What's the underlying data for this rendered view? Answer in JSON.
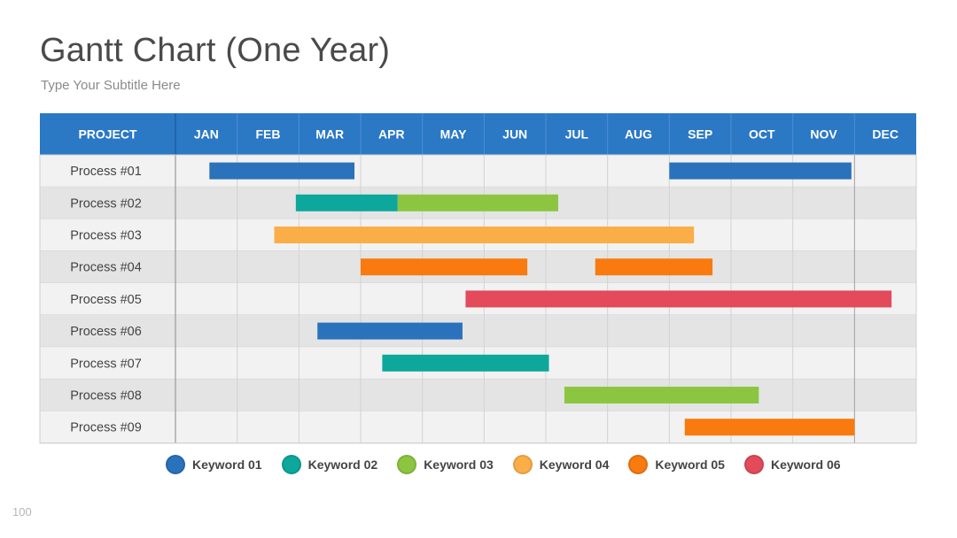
{
  "page": {
    "title": "Gantt Chart (One Year)",
    "subtitle": "Type Your Subtitle Here",
    "page_number": "100"
  },
  "colors": {
    "header": "#2b78c5",
    "keyword_01": "#2a72bc",
    "keyword_02": "#0ea79b",
    "keyword_03": "#8cc640",
    "keyword_04": "#fbae48",
    "keyword_05": "#f97a0e",
    "keyword_06": "#e34a5a"
  },
  "chart_data": {
    "type": "gantt",
    "header_label": "PROJECT",
    "months": [
      "JAN",
      "FEB",
      "MAR",
      "APR",
      "MAY",
      "JUN",
      "JUL",
      "AUG",
      "SEP",
      "OCT",
      "NOV",
      "DEC"
    ],
    "rows": [
      {
        "name": "Process #01",
        "bars": [
          {
            "start": 0.55,
            "end": 2.9,
            "keyword": "Keyword 01"
          },
          {
            "start": 8.0,
            "end": 10.95,
            "keyword": "Keyword 01"
          }
        ]
      },
      {
        "name": "Process #02",
        "bars": [
          {
            "start": 1.95,
            "end": 3.6,
            "keyword": "Keyword 02"
          },
          {
            "start": 3.6,
            "end": 6.2,
            "keyword": "Keyword 03"
          }
        ]
      },
      {
        "name": "Process #03",
        "bars": [
          {
            "start": 1.6,
            "end": 8.4,
            "keyword": "Keyword 04"
          }
        ]
      },
      {
        "name": "Process #04",
        "bars": [
          {
            "start": 3.0,
            "end": 5.7,
            "keyword": "Keyword 05"
          },
          {
            "start": 6.8,
            "end": 8.7,
            "keyword": "Keyword 05"
          }
        ]
      },
      {
        "name": "Process #05",
        "bars": [
          {
            "start": 4.7,
            "end": 11.6,
            "keyword": "Keyword 06"
          }
        ]
      },
      {
        "name": "Process #06",
        "bars": [
          {
            "start": 2.3,
            "end": 4.65,
            "keyword": "Keyword 01"
          }
        ]
      },
      {
        "name": "Process #07",
        "bars": [
          {
            "start": 3.35,
            "end": 6.05,
            "keyword": "Keyword 02"
          }
        ]
      },
      {
        "name": "Process #08",
        "bars": [
          {
            "start": 6.3,
            "end": 9.45,
            "keyword": "Keyword 03"
          }
        ]
      },
      {
        "name": "Process #09",
        "bars": [
          {
            "start": 8.25,
            "end": 11.0,
            "keyword": "Keyword 05"
          }
        ]
      }
    ],
    "legend": [
      {
        "label": "Keyword 01",
        "color": "#2a72bc"
      },
      {
        "label": "Keyword 02",
        "color": "#0ea79b"
      },
      {
        "label": "Keyword 03",
        "color": "#8cc640"
      },
      {
        "label": "Keyword 04",
        "color": "#fbae48"
      },
      {
        "label": "Keyword 05",
        "color": "#f97a0e"
      },
      {
        "label": "Keyword 06",
        "color": "#e34a5a"
      }
    ],
    "legend_position": "bottom",
    "grid": true
  }
}
